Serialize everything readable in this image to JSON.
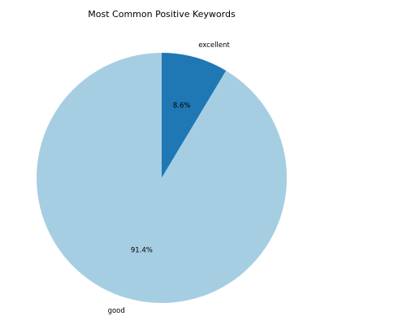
{
  "chart_data": {
    "type": "pie",
    "title": "Most Common Positive Keywords",
    "slices": [
      {
        "label": "excellent",
        "value": 8.6,
        "pct_label": "8.6%",
        "color": "#1f78b4"
      },
      {
        "label": "good",
        "value": 91.4,
        "pct_label": "91.4%",
        "color": "#a6cee3"
      }
    ],
    "start_angle_deg": 90,
    "direction": "clockwise"
  }
}
